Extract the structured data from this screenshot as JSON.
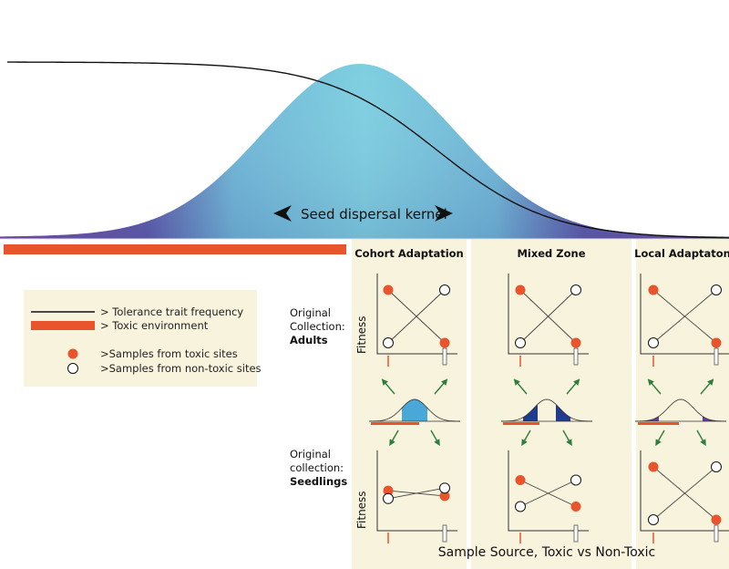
{
  "kernel_label": "Seed dispersal  kernel",
  "columns": [
    "Cohort Adaptation",
    "Mixed Zone",
    "Local Adaptaton"
  ],
  "rows": [
    {
      "line1": "Original",
      "line2": "Collection:",
      "line3": "Adults"
    },
    {
      "line1": "Original",
      "line2": "collection:",
      "line3": "Seedlings"
    }
  ],
  "y_axis_label": "Fitness",
  "x_axis_label": "Sample Source, Toxic vs Non-Toxic",
  "legend": {
    "tolerance": "> Tolerance trait frequency",
    "toxic_env": "> Toxic environment",
    "toxic_samples": ">Samples from toxic sites",
    "nontoxic_samples": ">Samples from non-toxic sites"
  },
  "colors": {
    "toxic": "#e8542c",
    "panel": "#f7f3dc",
    "kernel_center": "#7ecfe0",
    "kernel_edge": "#7a4aa0",
    "arrow": "#2e7d3a",
    "tail_fill": "#1f3c8f"
  },
  "fitness_plots": {
    "adults": [
      {
        "toxic_sample": [
          1,
          0
        ],
        "nontoxic_sample": [
          0,
          1
        ]
      },
      {
        "toxic_sample": [
          1,
          0
        ],
        "nontoxic_sample": [
          0,
          1
        ]
      },
      {
        "toxic_sample": [
          1,
          0
        ],
        "nontoxic_sample": [
          0,
          1
        ]
      }
    ],
    "seedlings": [
      {
        "toxic_sample": [
          0.55,
          0.45
        ],
        "nontoxic_sample": [
          0.4,
          0.6
        ]
      },
      {
        "toxic_sample": [
          0.75,
          0.25
        ],
        "nontoxic_sample": [
          0.25,
          0.75
        ]
      },
      {
        "toxic_sample": [
          1,
          0
        ],
        "nontoxic_sample": [
          0,
          1
        ]
      }
    ]
  }
}
